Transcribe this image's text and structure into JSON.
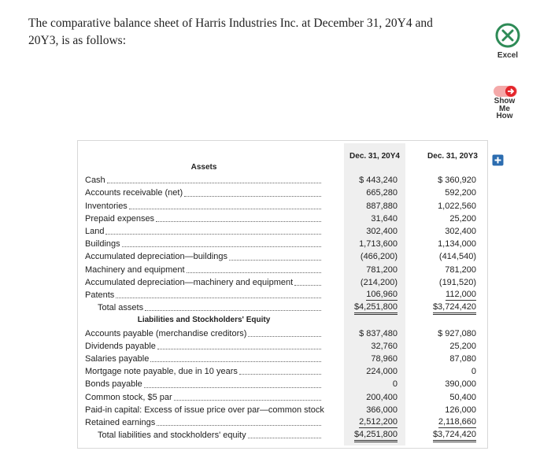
{
  "intro": [
    "The comparative balance sheet of Harris Industries Inc. at December 31, 20Y4 and",
    "20Y3, is as follows:"
  ],
  "excel_label": "Excel",
  "show_me_how": [
    "Show",
    "Me",
    "How"
  ],
  "table": {
    "columns": [
      "Dec. 31, 20Y4",
      "Dec. 31, 20Y3"
    ],
    "sections": [
      {
        "heading": "Assets",
        "rows": [
          {
            "label": "Cash",
            "y4": "$ 443,240",
            "y3": "$ 360,920"
          },
          {
            "label": "Accounts receivable (net)",
            "y4": "665,280",
            "y3": "592,200"
          },
          {
            "label": "Inventories",
            "y4": "887,880",
            "y3": "1,022,560"
          },
          {
            "label": "Prepaid expenses",
            "y4": "31,640",
            "y3": "25,200"
          },
          {
            "label": "Land",
            "y4": "302,400",
            "y3": "302,400"
          },
          {
            "label": "Buildings",
            "y4": "1,713,600",
            "y3": "1,134,000"
          },
          {
            "label": "Accumulated depreciation—buildings",
            "y4": "(466,200)",
            "y3": "(414,540)"
          },
          {
            "label": "Machinery and equipment",
            "y4": "781,200",
            "y3": "781,200"
          },
          {
            "label": "Accumulated depreciation—machinery and equipment",
            "y4": "(214,200)",
            "y3": "(191,520)"
          },
          {
            "label": "Patents",
            "y4": "106,960",
            "y3": "112,000",
            "rule": "single"
          },
          {
            "label": "Total assets",
            "y4": "$4,251,800",
            "y3": "$3,724,420",
            "rule": "double",
            "indent": true
          }
        ]
      },
      {
        "heading": "Liabilities and Stockholders' Equity",
        "rows": [
          {
            "label": "Accounts payable (merchandise creditors)",
            "y4": "$ 837,480",
            "y3": "$ 927,080"
          },
          {
            "label": "Dividends payable",
            "y4": "32,760",
            "y3": "25,200"
          },
          {
            "label": "Salaries payable",
            "y4": "78,960",
            "y3": "87,080"
          },
          {
            "label": "Mortgage note payable, due in 10 years",
            "y4": "224,000",
            "y3": "0"
          },
          {
            "label": "Bonds payable",
            "y4": "0",
            "y3": "390,000"
          },
          {
            "label": "Common stock, $5 par",
            "y4": "200,400",
            "y3": "50,400"
          },
          {
            "label": "Paid-in capital: Excess of issue price over par—common stock",
            "y4": "366,000",
            "y3": "126,000"
          },
          {
            "label": "Retained earnings",
            "y4": "2,512,200",
            "y3": "2,118,660",
            "rule": "single"
          },
          {
            "label": "Total liabilities and stockholders' equity",
            "y4": "$4,251,800",
            "y3": "$3,724,420",
            "rule": "double",
            "indent": true
          }
        ]
      }
    ]
  }
}
